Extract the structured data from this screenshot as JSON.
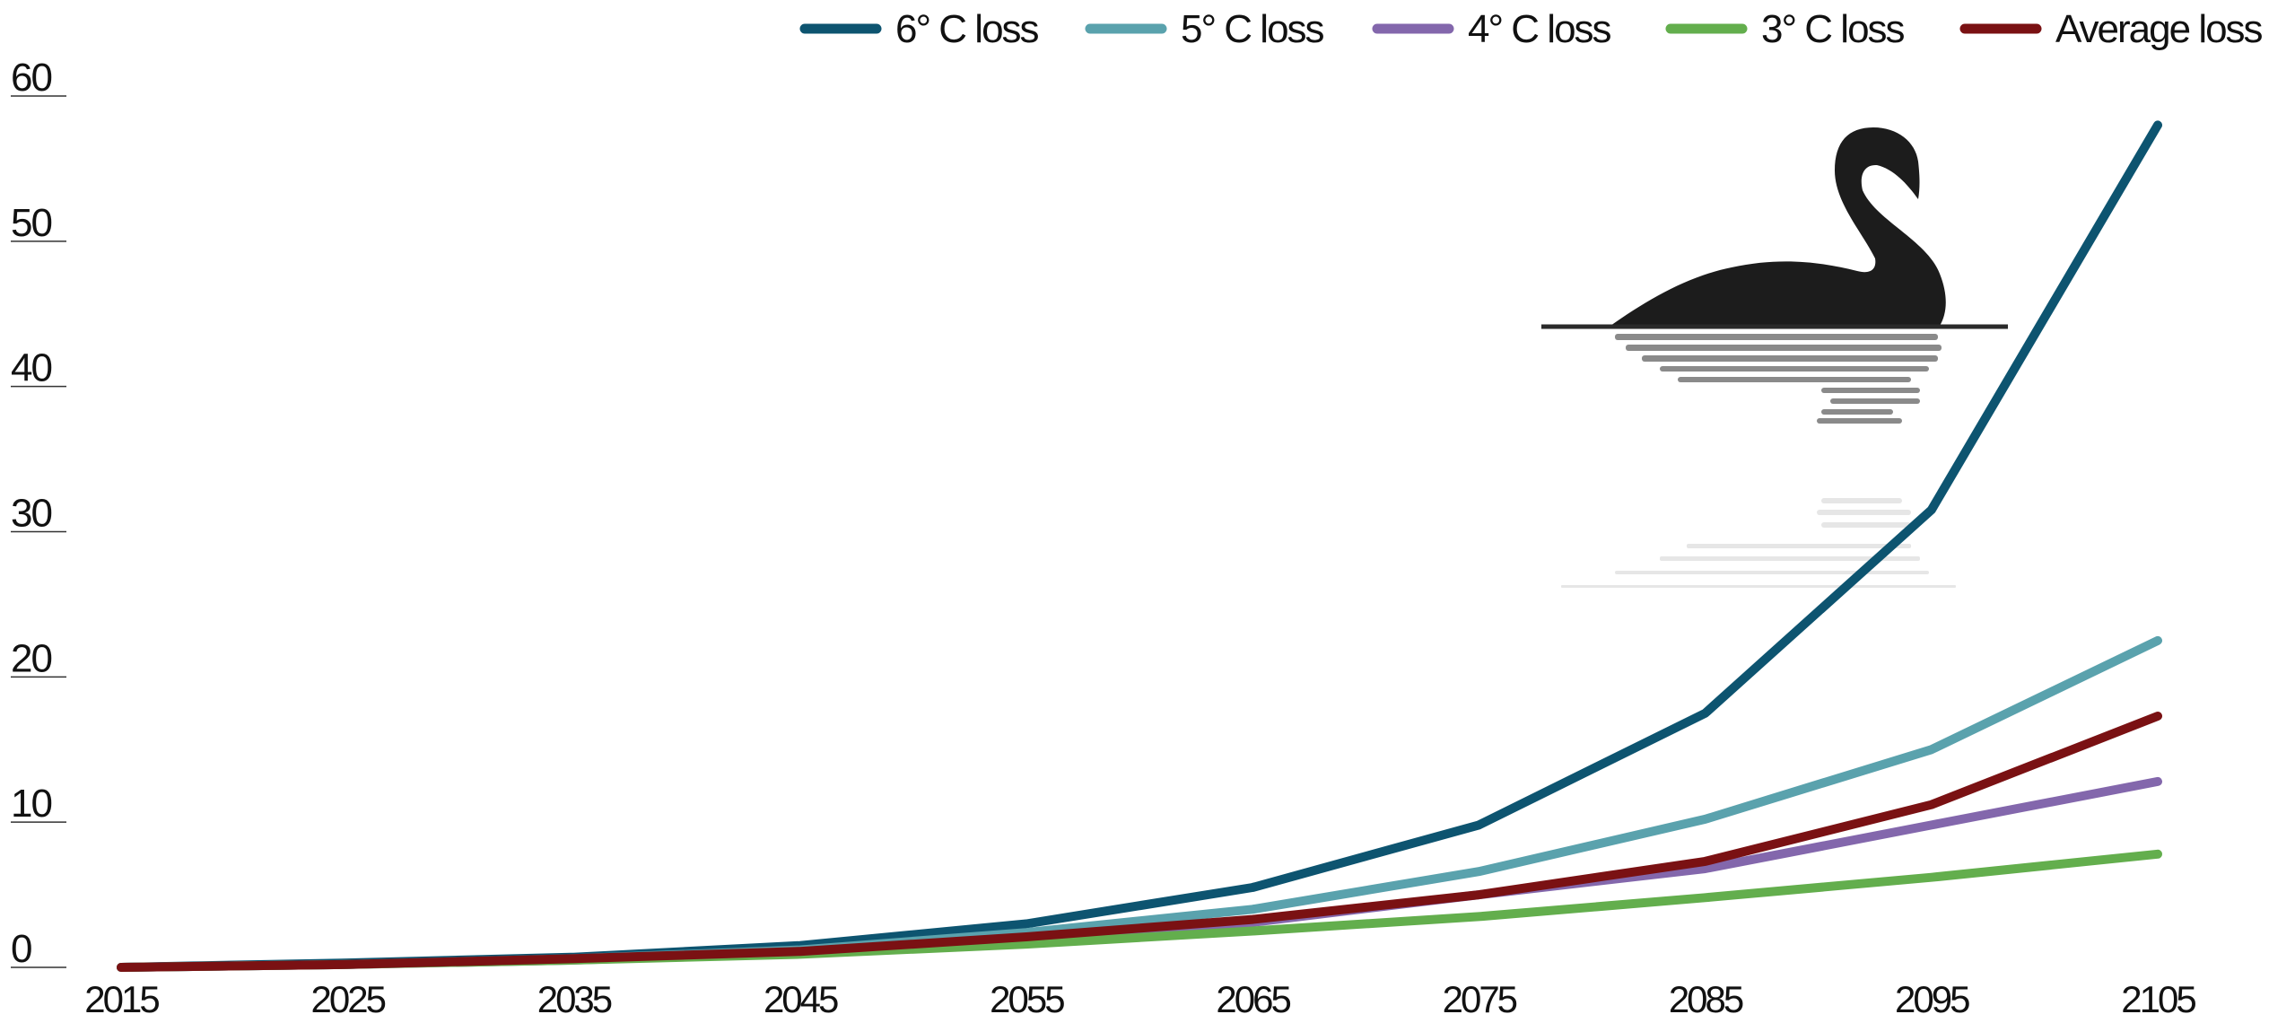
{
  "chart_data": {
    "type": "line",
    "title": "",
    "xlabel": "",
    "ylabel": "",
    "x": [
      2015,
      2025,
      2035,
      2045,
      2055,
      2065,
      2075,
      2085,
      2095,
      2105
    ],
    "x_tick_labels": [
      "2015",
      "2025",
      "2035",
      "2045",
      "2055",
      "2065",
      "2075",
      "2085",
      "2095",
      "2105"
    ],
    "ylim": [
      0,
      60
    ],
    "y_ticks": [
      0,
      10,
      20,
      30,
      40,
      50,
      60
    ],
    "y_tick_labels": [
      "0",
      "10",
      "20",
      "30",
      "40",
      "50",
      "60"
    ],
    "grid": false,
    "legend_position": "top-right",
    "series": [
      {
        "name": "6° C loss",
        "color": "#0d5470",
        "values": [
          0,
          0.3,
          0.7,
          1.5,
          3.0,
          5.5,
          9.8,
          17.5,
          31.5,
          58.0
        ]
      },
      {
        "name": "5° C loss",
        "color": "#5aa2ad",
        "values": [
          0,
          0.2,
          0.6,
          1.2,
          2.4,
          4.0,
          6.6,
          10.2,
          15.0,
          22.5
        ]
      },
      {
        "name": "4° C loss",
        "color": "#8367ac",
        "values": [
          0,
          0.2,
          0.5,
          1.0,
          1.9,
          3.1,
          5.0,
          6.8,
          9.8,
          12.8
        ]
      },
      {
        "name": "3° C loss",
        "color": "#63ae4d",
        "values": [
          0,
          0.2,
          0.5,
          0.9,
          1.6,
          2.5,
          3.5,
          4.8,
          6.2,
          7.8
        ]
      },
      {
        "name": "Average loss",
        "color": "#7a1113",
        "values": [
          0,
          0.2,
          0.6,
          1.1,
          2.1,
          3.3,
          5.0,
          7.3,
          11.2,
          17.3
        ]
      }
    ]
  },
  "logo": {
    "name": "black-swan-logo",
    "ink_color": "#1c1c1c",
    "reflection_color": "#8a8a8a"
  }
}
